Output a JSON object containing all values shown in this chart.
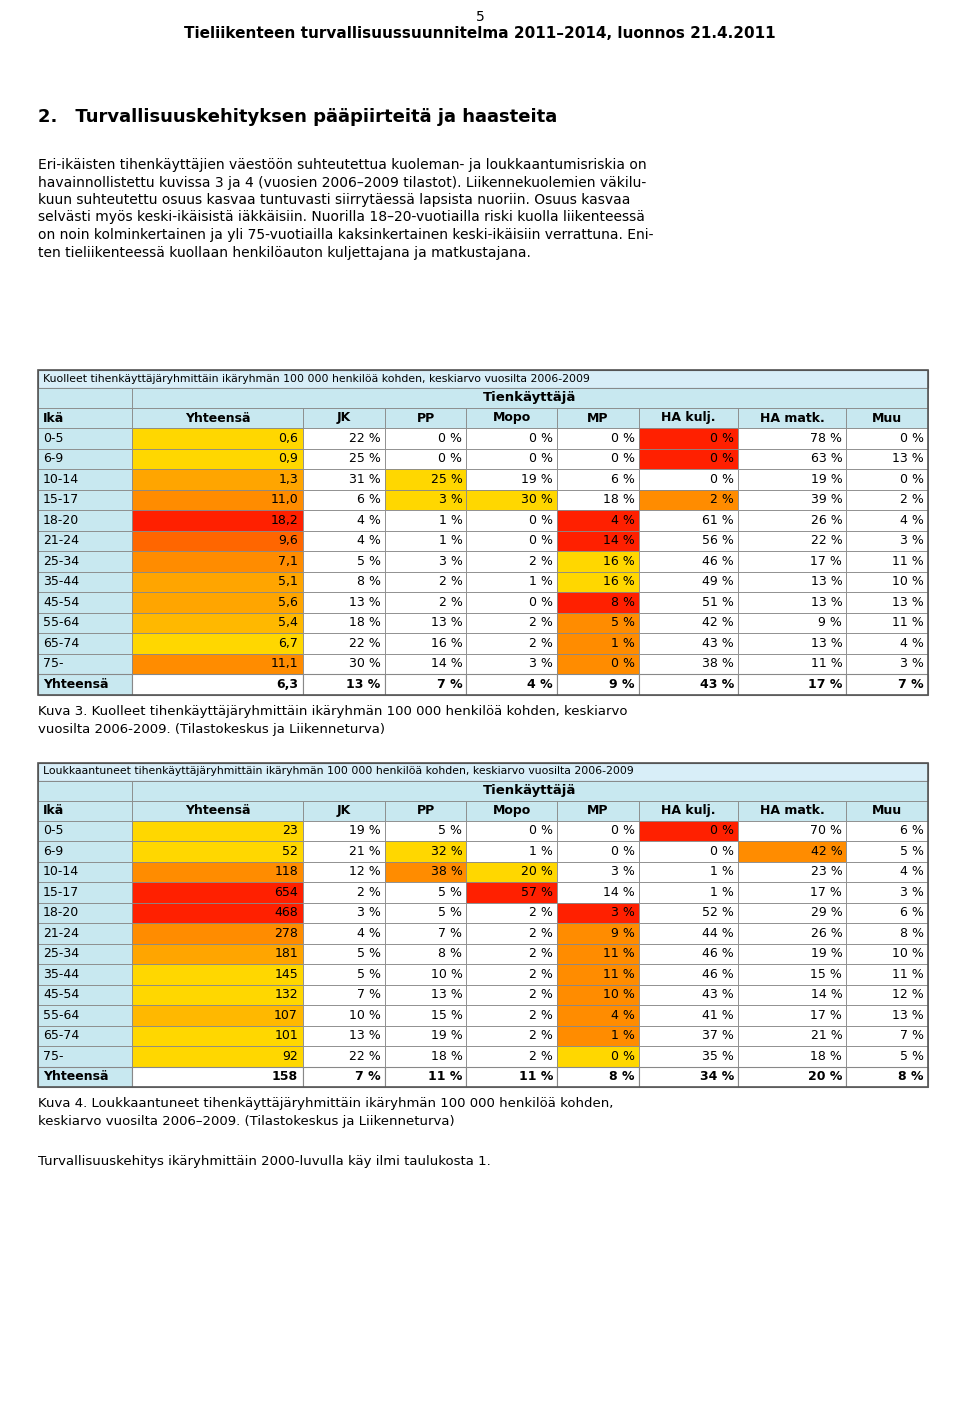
{
  "page_header": "5",
  "page_subheader": "Tieliikenteen turvallisuussuunnitelma 2011–2014, luonnos 21.4.2011",
  "section_title": "2. Turvallisuuskehityksen pääpiirteitä ja haasteita",
  "body_text_line1": "Eri-ikäisten tihenkäyttäjien väestöön suhteutettua kuoleman- ja loukkaantumisriskia on",
  "body_text_line2": "havainnollistettu kuvissa 3 ja 4 (vuosien 2006–2009 tilastot). Liikennekuolemien väkilu-",
  "body_text_line3": "kuun suhteutettu osuus kasvaa tuntuvasti siirrytäessä lapsista nuoriin. Osuus kasvaa",
  "body_text_line4": "selvästi myös keski-ikäisistä iäkkäisiin. Nuorilla 18–20-vuotiailla riski kuolla liikenteessä",
  "body_text_line5": "on noin kolminkertainen ja yli 75-vuotiailla kaksinkertainen keski-ikäisiin verrattuna. Eni-",
  "body_text_line6": "ten tieliikenteessä kuollaan henkilöauton kuljettajana ja matkustajana.",
  "table1_title": "Kuolleet tihenkäyttäjäryhmittäin ikäryhmän 100 000 henkilöä kohden, keskiarvo vuosilta 2006-2009",
  "tienkäyttäjä": "Tihenkäyttäjä",
  "table1_col_headers": [
    "Ikä",
    "Yhteensä",
    "JK",
    "PP",
    "Mopo",
    "MP",
    "HA kulj.",
    "HA matk.",
    "Muu"
  ],
  "table1_rows": [
    [
      "0-5",
      "0,6",
      "22 %",
      "0 %",
      "0 %",
      "0 %",
      "0 %",
      "78 %",
      "0 %"
    ],
    [
      "6-9",
      "0,9",
      "25 %",
      "0 %",
      "0 %",
      "0 %",
      "0 %",
      "63 %",
      "13 %"
    ],
    [
      "10-14",
      "1,3",
      "31 %",
      "25 %",
      "19 %",
      "6 %",
      "0 %",
      "19 %",
      "0 %"
    ],
    [
      "15-17",
      "11,0",
      "6 %",
      "3 %",
      "30 %",
      "18 %",
      "2 %",
      "39 %",
      "2 %"
    ],
    [
      "18-20",
      "18,2",
      "4 %",
      "1 %",
      "0 %",
      "4 %",
      "61 %",
      "26 %",
      "4 %"
    ],
    [
      "21-24",
      "9,6",
      "4 %",
      "1 %",
      "0 %",
      "14 %",
      "56 %",
      "22 %",
      "3 %"
    ],
    [
      "25-34",
      "7,1",
      "5 %",
      "3 %",
      "2 %",
      "16 %",
      "46 %",
      "17 %",
      "11 %"
    ],
    [
      "35-44",
      "5,1",
      "8 %",
      "2 %",
      "1 %",
      "16 %",
      "49 %",
      "13 %",
      "10 %"
    ],
    [
      "45-54",
      "5,6",
      "13 %",
      "2 %",
      "0 %",
      "8 %",
      "51 %",
      "13 %",
      "13 %"
    ],
    [
      "55-64",
      "5,4",
      "18 %",
      "13 %",
      "2 %",
      "5 %",
      "42 %",
      "9 %",
      "11 %"
    ],
    [
      "65-74",
      "6,7",
      "22 %",
      "16 %",
      "2 %",
      "1 %",
      "43 %",
      "13 %",
      "4 %"
    ],
    [
      "75-",
      "11,1",
      "30 %",
      "14 %",
      "3 %",
      "0 %",
      "38 %",
      "11 %",
      "3 %"
    ]
  ],
  "table1_footer": [
    "Yhteensä",
    "6,3",
    "13 %",
    "7 %",
    "4 %",
    "9 %",
    "43 %",
    "17 %",
    "7 %"
  ],
  "table1_row_bg": [
    "#FFD700",
    "#FFD700",
    "#FFA500",
    "#FF8C00",
    "#FF2000",
    "#FF6600",
    "#FF8C00",
    "#FFA500",
    "#FFA500",
    "#FFB800",
    "#FFD700",
    "#FF8C00"
  ],
  "table1_pct_bg": [
    [
      null,
      null,
      null,
      null,
      null,
      null,
      "#FF2000",
      null,
      null
    ],
    [
      null,
      null,
      null,
      null,
      null,
      null,
      "#FF2000",
      null,
      null
    ],
    [
      null,
      null,
      null,
      "#FFD700",
      null,
      null,
      null,
      null,
      null
    ],
    [
      null,
      null,
      null,
      "#FFD700",
      "#FFD700",
      null,
      "#FF8C00",
      null,
      null
    ],
    [
      null,
      null,
      null,
      null,
      null,
      "#FF2000",
      null,
      null,
      null
    ],
    [
      null,
      null,
      null,
      null,
      null,
      "#FF2000",
      null,
      null,
      null
    ],
    [
      null,
      null,
      null,
      null,
      null,
      "#FFD700",
      null,
      null,
      null
    ],
    [
      null,
      null,
      null,
      null,
      null,
      "#FFD700",
      null,
      null,
      null
    ],
    [
      null,
      null,
      null,
      null,
      null,
      "#FF2000",
      null,
      null,
      null
    ],
    [
      null,
      null,
      null,
      null,
      null,
      "#FF8C00",
      null,
      null,
      null
    ],
    [
      null,
      null,
      null,
      null,
      null,
      "#FF8C00",
      null,
      null,
      null
    ],
    [
      null,
      null,
      null,
      null,
      null,
      "#FF8C00",
      null,
      null,
      null
    ]
  ],
  "kuva3_caption_line1": "Kuva 3. Kuolleet tihenkäyttäjäryhmittäin ikäryhmän 100 000 henkilöä kohden, keskiarvo",
  "kuva3_caption_line2": "vuosilta 2006-2009. (Tilastokeskus ja Liikenneturva)",
  "table2_title": "Loukkaantuneet tihenkäyttäjäryhmittäin ikäryhmän 100 000 henkilöä kohden, keskiarvo vuosilta 2006-2009",
  "table2_col_headers": [
    "Ikä",
    "Yhteensä",
    "JK",
    "PP",
    "Mopo",
    "MP",
    "HA kulj.",
    "HA matk.",
    "Muu"
  ],
  "table2_rows": [
    [
      "0-5",
      "23",
      "19 %",
      "5 %",
      "0 %",
      "0 %",
      "0 %",
      "70 %",
      "6 %"
    ],
    [
      "6-9",
      "52",
      "21 %",
      "32 %",
      "1 %",
      "0 %",
      "0 %",
      "42 %",
      "5 %"
    ],
    [
      "10-14",
      "118",
      "12 %",
      "38 %",
      "20 %",
      "3 %",
      "1 %",
      "23 %",
      "4 %"
    ],
    [
      "15-17",
      "654",
      "2 %",
      "5 %",
      "57 %",
      "14 %",
      "1 %",
      "17 %",
      "3 %"
    ],
    [
      "18-20",
      "468",
      "3 %",
      "5 %",
      "2 %",
      "3 %",
      "52 %",
      "29 %",
      "6 %"
    ],
    [
      "21-24",
      "278",
      "4 %",
      "7 %",
      "2 %",
      "9 %",
      "44 %",
      "26 %",
      "8 %"
    ],
    [
      "25-34",
      "181",
      "5 %",
      "8 %",
      "2 %",
      "11 %",
      "46 %",
      "19 %",
      "10 %"
    ],
    [
      "35-44",
      "145",
      "5 %",
      "10 %",
      "2 %",
      "11 %",
      "46 %",
      "15 %",
      "11 %"
    ],
    [
      "45-54",
      "132",
      "7 %",
      "13 %",
      "2 %",
      "10 %",
      "43 %",
      "14 %",
      "12 %"
    ],
    [
      "55-64",
      "107",
      "10 %",
      "15 %",
      "2 %",
      "4 %",
      "41 %",
      "17 %",
      "13 %"
    ],
    [
      "65-74",
      "101",
      "13 %",
      "19 %",
      "2 %",
      "1 %",
      "37 %",
      "21 %",
      "7 %"
    ],
    [
      "75-",
      "92",
      "22 %",
      "18 %",
      "2 %",
      "0 %",
      "35 %",
      "18 %",
      "5 %"
    ]
  ],
  "table2_footer": [
    "Yhteensä",
    "158",
    "7 %",
    "11 %",
    "11 %",
    "8 %",
    "34 %",
    "20 %",
    "8 %"
  ],
  "table2_row_bg": [
    "#FFD700",
    "#FFD700",
    "#FF8C00",
    "#FF2000",
    "#FF2000",
    "#FF8C00",
    "#FFA500",
    "#FFD700",
    "#FFD700",
    "#FFB800",
    "#FFD700",
    "#FFD700"
  ],
  "table2_pct_bg": [
    [
      null,
      null,
      null,
      null,
      null,
      null,
      "#FF2000",
      null,
      null
    ],
    [
      null,
      null,
      null,
      "#FFD700",
      null,
      null,
      null,
      "#FF8C00",
      null
    ],
    [
      null,
      null,
      null,
      "#FF8C00",
      "#FFD700",
      null,
      null,
      null,
      null
    ],
    [
      null,
      null,
      null,
      null,
      "#FF2000",
      null,
      null,
      null,
      null
    ],
    [
      null,
      null,
      null,
      null,
      null,
      "#FF2000",
      null,
      null,
      null
    ],
    [
      null,
      null,
      null,
      null,
      null,
      "#FF8C00",
      null,
      null,
      null
    ],
    [
      null,
      null,
      null,
      null,
      null,
      "#FF8C00",
      null,
      null,
      null
    ],
    [
      null,
      null,
      null,
      null,
      null,
      "#FF8C00",
      null,
      null,
      null
    ],
    [
      null,
      null,
      null,
      null,
      null,
      "#FF8C00",
      null,
      null,
      null
    ],
    [
      null,
      null,
      null,
      null,
      null,
      "#FF8C00",
      null,
      null,
      null
    ],
    [
      null,
      null,
      null,
      null,
      null,
      "#FF8C00",
      null,
      null,
      null
    ],
    [
      null,
      null,
      null,
      null,
      null,
      "#FFD700",
      null,
      null,
      null
    ]
  ],
  "kuva4_caption_line1": "Kuva 4. Loukkaantuneet tihenkäyttäjäryhmittäin ikäryhmän 100 000 henkilöä kohden,",
  "kuva4_caption_line2": "keskiarvo vuosilta 2006–2009. (Tilastokeskus ja Liikenneturva)",
  "final_text": "Turvallisuuskehitys ikäryhmittäin 2000-luvulla käy ilmi taulukosta 1.",
  "light_blue": "#C8E8F0",
  "lighter_blue": "#DAEEF5",
  "title_bg": "#D8EEF8",
  "white": "#FFFFFF",
  "border_color": "#888888",
  "border_outer": "#555555"
}
